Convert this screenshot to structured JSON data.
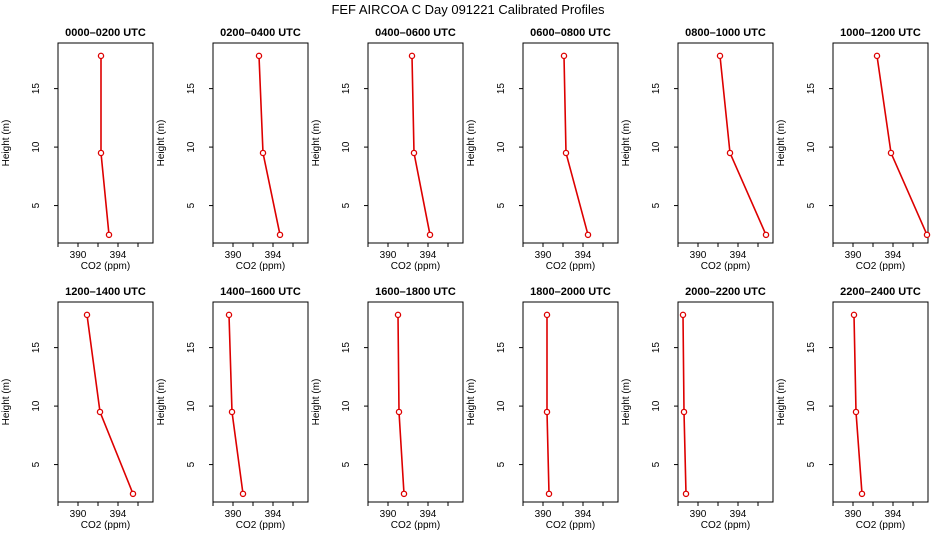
{
  "title": "FEF AIRCOA C  Day 091221  Calibrated Profiles",
  "chart_data": {
    "type": "line",
    "orientation": "vertical-profile",
    "xlabel": "CO2 (ppm)",
    "ylabel": "Height (m)",
    "xlim": [
      388,
      397.5
    ],
    "ylim": [
      1.8,
      18.9
    ],
    "xticks": [
      390,
      394
    ],
    "xticks_minor": [
      388,
      392,
      396
    ],
    "yticks": [
      5,
      10,
      15
    ],
    "heights": [
      2.5,
      9.5,
      17.8
    ],
    "panels": [
      {
        "title": "0000–0200 UTC",
        "co2": [
          393.1,
          392.3,
          392.3
        ]
      },
      {
        "title": "0200–0400 UTC",
        "co2": [
          394.7,
          393.0,
          392.6
        ]
      },
      {
        "title": "0400–0600 UTC",
        "co2": [
          394.2,
          392.6,
          392.4
        ]
      },
      {
        "title": "0600–0800 UTC",
        "co2": [
          394.5,
          392.3,
          392.1
        ]
      },
      {
        "title": "0800–1000 UTC",
        "co2": [
          396.8,
          393.2,
          392.2
        ]
      },
      {
        "title": "1000–1200 UTC",
        "co2": [
          397.4,
          393.8,
          392.4
        ]
      },
      {
        "title": "1200–1400 UTC",
        "co2": [
          395.5,
          392.2,
          390.9
        ]
      },
      {
        "title": "1400–1600 UTC",
        "co2": [
          391.0,
          389.9,
          389.6
        ]
      },
      {
        "title": "1600–1800 UTC",
        "co2": [
          391.6,
          391.1,
          391.0
        ]
      },
      {
        "title": "1800–2000 UTC",
        "co2": [
          390.6,
          390.4,
          390.4
        ]
      },
      {
        "title": "2000–2200 UTC",
        "co2": [
          388.8,
          388.6,
          388.5
        ]
      },
      {
        "title": "2200–2400 UTC",
        "co2": [
          390.9,
          390.3,
          390.1
        ]
      }
    ]
  }
}
